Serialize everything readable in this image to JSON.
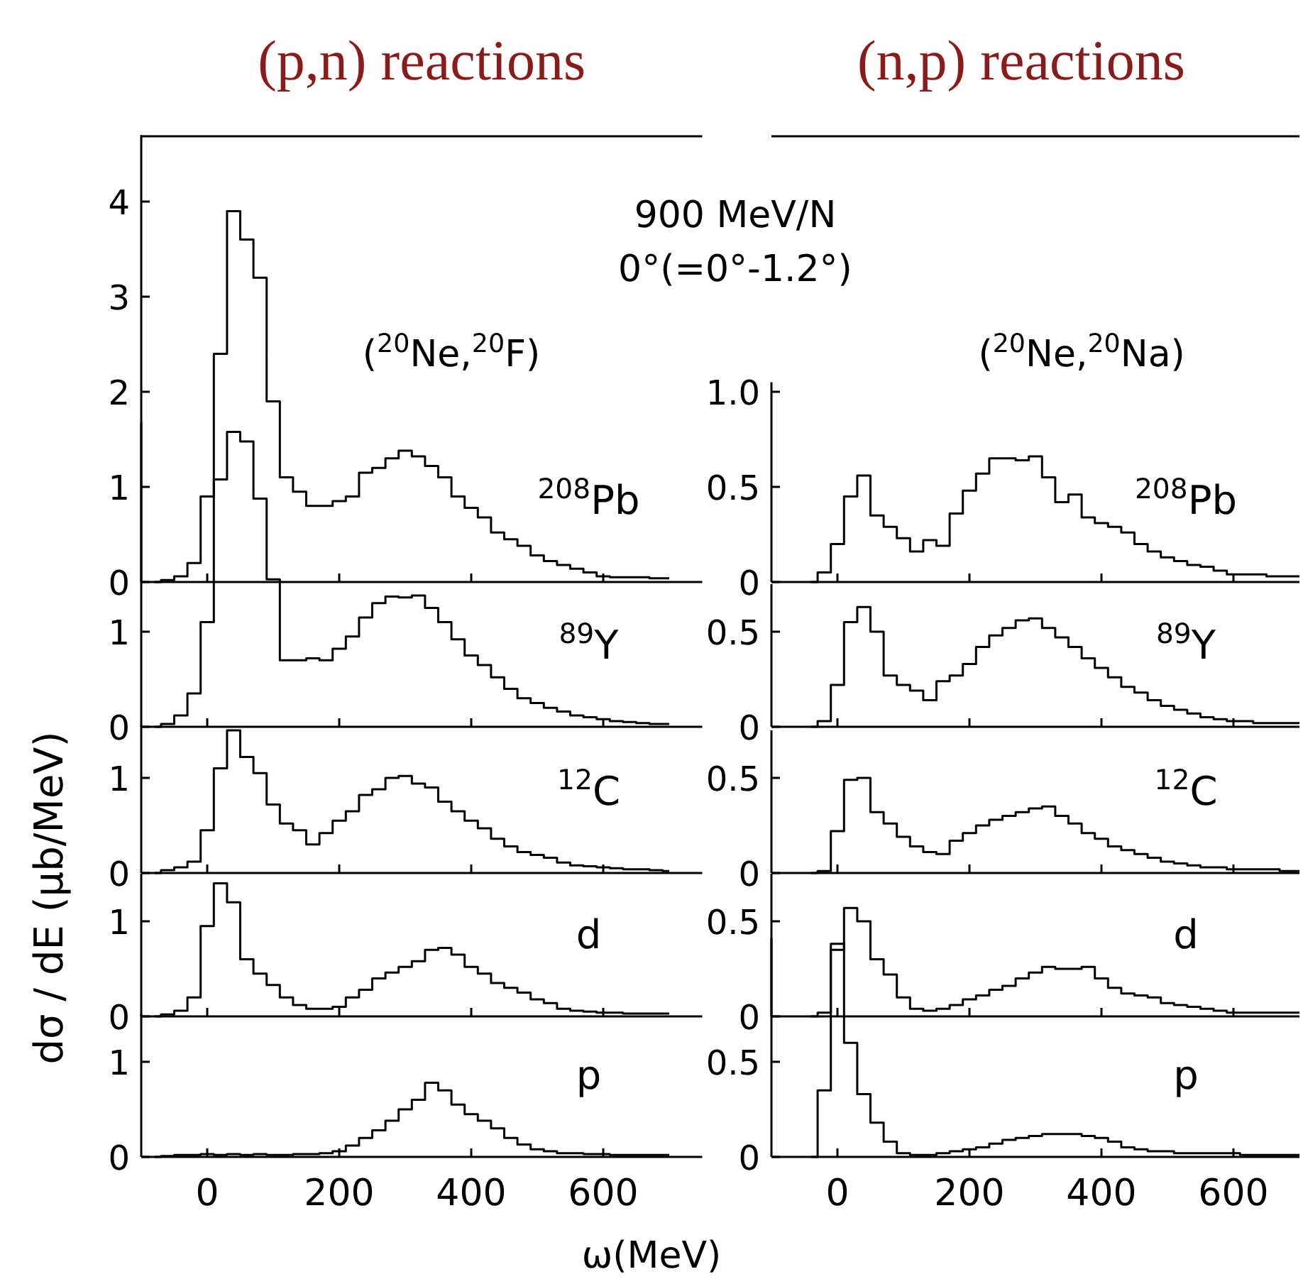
{
  "chart_data": [
    {
      "type": "step",
      "title": "(p,n) reactions",
      "annotations": [
        "900 MeV/N",
        "0°(=0°-1.2°)",
        "($^{20}$Ne,$^{20}$F)",
        "$^{208}$Pb"
      ],
      "x": [
        -80,
        -60,
        -40,
        -20,
        0,
        20,
        40,
        60,
        80,
        100,
        120,
        140,
        160,
        180,
        200,
        220,
        240,
        260,
        280,
        300,
        320,
        340,
        360,
        380,
        400,
        420,
        440,
        460,
        480,
        500,
        520,
        540,
        560,
        580,
        600,
        620,
        640,
        660,
        680,
        700
      ],
      "xlim": [
        -100,
        750
      ],
      "xticks": [
        0,
        200,
        400,
        600
      ],
      "ylim": [
        0,
        4.7
      ],
      "yticks": [
        0,
        1,
        2,
        3,
        4
      ],
      "tick_labels": "y",
      "series": [
        {
          "color": "#000000",
          "values": [
            0,
            0.02,
            0.06,
            0.2,
            0.9,
            2.4,
            3.9,
            3.6,
            3.2,
            1.9,
            1.1,
            0.95,
            0.8,
            0.8,
            0.85,
            0.9,
            1.15,
            1.2,
            1.3,
            1.38,
            1.32,
            1.22,
            1.1,
            0.9,
            0.78,
            0.68,
            0.52,
            0.45,
            0.38,
            0.28,
            0.22,
            0.18,
            0.14,
            0.1,
            0.06,
            0.05,
            0.05,
            0.05,
            0.04,
            0.04
          ]
        }
      ]
    },
    {
      "type": "step",
      "title": "(n,p) reactions",
      "annotations": [
        "($^{20}$Ne,$^{20}$Na)",
        "$^{208}$Pb"
      ],
      "x": [
        -40,
        -20,
        0,
        20,
        40,
        60,
        80,
        100,
        120,
        140,
        160,
        180,
        200,
        220,
        240,
        260,
        280,
        300,
        320,
        340,
        360,
        380,
        400,
        420,
        440,
        460,
        480,
        500,
        520,
        540,
        560,
        580,
        600,
        620,
        640,
        660,
        680,
        700
      ],
      "xlim": [
        -100,
        700
      ],
      "xticks": [
        0,
        200,
        400,
        600
      ],
      "ylim": [
        0,
        1.05
      ],
      "yticks": [
        0,
        0.5,
        {
          "value": 1,
          "label": "1.0"
        }
      ],
      "tick_labels": "y",
      "series": [
        {
          "color": "#000000",
          "values": [
            0,
            0.05,
            0.2,
            0.45,
            0.56,
            0.35,
            0.29,
            0.23,
            0.16,
            0.22,
            0.19,
            0.36,
            0.48,
            0.57,
            0.65,
            0.65,
            0.64,
            0.66,
            0.55,
            0.42,
            0.46,
            0.34,
            0.31,
            0.29,
            0.26,
            0.2,
            0.16,
            0.13,
            0.11,
            0.09,
            0.08,
            0.06,
            0.04,
            0.04,
            0.04,
            0.03,
            0.03,
            0.03
          ]
        }
      ]
    },
    {
      "type": "step",
      "annotations": [
        "$^{89}$Y"
      ],
      "x": [
        -80,
        -60,
        -40,
        -20,
        0,
        20,
        40,
        60,
        80,
        100,
        120,
        140,
        160,
        180,
        200,
        220,
        240,
        260,
        280,
        300,
        320,
        340,
        360,
        380,
        400,
        420,
        440,
        460,
        480,
        500,
        520,
        540,
        560,
        580,
        600,
        620,
        640,
        660,
        680,
        700
      ],
      "xlim": [
        -100,
        750
      ],
      "xticks": [
        0,
        200,
        400,
        600
      ],
      "ylim": [
        0,
        3.2
      ],
      "yticks": [
        0,
        1
      ],
      "tick_labels": "y",
      "series": [
        {
          "color": "#000000",
          "values": [
            0,
            0.03,
            0.12,
            0.35,
            1.1,
            2.6,
            3.1,
            3.0,
            2.4,
            1.55,
            0.7,
            0.7,
            0.72,
            0.7,
            0.82,
            0.95,
            1.15,
            1.3,
            1.37,
            1.36,
            1.38,
            1.25,
            1.1,
            0.92,
            0.75,
            0.65,
            0.52,
            0.4,
            0.3,
            0.25,
            0.2,
            0.16,
            0.12,
            0.1,
            0.08,
            0.06,
            0.05,
            0.04,
            0.03,
            0.03
          ]
        }
      ]
    },
    {
      "type": "step",
      "annotations": [
        "$^{89}$Y"
      ],
      "x": [
        -40,
        -20,
        0,
        20,
        40,
        60,
        80,
        100,
        120,
        140,
        160,
        180,
        200,
        220,
        240,
        260,
        280,
        300,
        320,
        340,
        360,
        380,
        400,
        420,
        440,
        460,
        480,
        500,
        520,
        540,
        560,
        580,
        600,
        620,
        640,
        660,
        680,
        700
      ],
      "xlim": [
        -100,
        700
      ],
      "xticks": [
        0,
        200,
        400,
        600
      ],
      "ylim": [
        0,
        0.75
      ],
      "yticks": [
        0,
        0.5
      ],
      "tick_labels": "y",
      "series": [
        {
          "color": "#000000",
          "values": [
            0,
            0.03,
            0.22,
            0.55,
            0.63,
            0.5,
            0.27,
            0.22,
            0.19,
            0.14,
            0.24,
            0.27,
            0.33,
            0.42,
            0.48,
            0.52,
            0.56,
            0.57,
            0.52,
            0.47,
            0.42,
            0.36,
            0.31,
            0.26,
            0.21,
            0.18,
            0.14,
            0.11,
            0.09,
            0.07,
            0.05,
            0.04,
            0.03,
            0.03,
            0.02,
            0.02,
            0.02,
            0.02
          ]
        }
      ]
    },
    {
      "type": "step",
      "ylabel": "dσ / dE (μb/MeV)",
      "annotations": [
        "$^{12}$C"
      ],
      "x": [
        -80,
        -60,
        -40,
        -20,
        0,
        20,
        40,
        60,
        80,
        100,
        120,
        140,
        160,
        180,
        200,
        220,
        240,
        260,
        280,
        300,
        320,
        340,
        360,
        380,
        400,
        420,
        440,
        460,
        480,
        500,
        520,
        540,
        560,
        580,
        600,
        620,
        640,
        660,
        680,
        700
      ],
      "xlim": [
        -100,
        750
      ],
      "xticks": [
        0,
        200,
        400,
        600
      ],
      "ylim": [
        0,
        1.55
      ],
      "yticks": [
        0,
        1
      ],
      "tick_labels": "y",
      "series": [
        {
          "color": "#000000",
          "values": [
            0,
            0.03,
            0.06,
            0.12,
            0.45,
            1.1,
            1.5,
            1.22,
            1.05,
            0.72,
            0.52,
            0.45,
            0.3,
            0.42,
            0.55,
            0.65,
            0.82,
            0.88,
            1.0,
            1.02,
            0.94,
            0.9,
            0.75,
            0.65,
            0.55,
            0.47,
            0.36,
            0.28,
            0.22,
            0.19,
            0.16,
            0.11,
            0.08,
            0.07,
            0.06,
            0.05,
            0.04,
            0.04,
            0.03,
            0.02
          ]
        }
      ]
    },
    {
      "type": "step",
      "annotations": [
        "$^{12}$C"
      ],
      "x": [
        -40,
        -20,
        0,
        20,
        40,
        60,
        80,
        100,
        120,
        140,
        160,
        180,
        200,
        220,
        240,
        260,
        280,
        300,
        320,
        340,
        360,
        380,
        400,
        420,
        440,
        460,
        480,
        500,
        520,
        540,
        560,
        580,
        600,
        620,
        640,
        660,
        680,
        700
      ],
      "xlim": [
        -100,
        700
      ],
      "xticks": [
        0,
        200,
        400,
        600
      ],
      "ylim": [
        0,
        0.75
      ],
      "yticks": [
        0,
        0.5
      ],
      "tick_labels": "y",
      "series": [
        {
          "color": "#000000",
          "values": [
            0,
            0.01,
            0.22,
            0.49,
            0.5,
            0.32,
            0.26,
            0.19,
            0.14,
            0.11,
            0.1,
            0.17,
            0.21,
            0.25,
            0.28,
            0.3,
            0.32,
            0.34,
            0.35,
            0.3,
            0.26,
            0.21,
            0.18,
            0.14,
            0.12,
            0.1,
            0.08,
            0.06,
            0.05,
            0.04,
            0.03,
            0.03,
            0.02,
            0.02,
            0.02,
            0.02,
            0.01,
            0.01
          ]
        }
      ]
    },
    {
      "type": "step",
      "annotations": [
        "d"
      ],
      "x": [
        -80,
        -60,
        -40,
        -20,
        0,
        20,
        40,
        60,
        80,
        100,
        120,
        140,
        160,
        180,
        200,
        220,
        240,
        260,
        280,
        300,
        320,
        340,
        360,
        380,
        400,
        420,
        440,
        460,
        480,
        500,
        520,
        540,
        560,
        580,
        600,
        620,
        640,
        660,
        680,
        700
      ],
      "xlim": [
        -100,
        750
      ],
      "xticks": [
        0,
        200,
        400,
        600
      ],
      "ylim": [
        0,
        1.5
      ],
      "yticks": [
        0,
        1
      ],
      "tick_labels": "y",
      "series": [
        {
          "color": "#000000",
          "values": [
            0,
            0.02,
            0.06,
            0.2,
            0.95,
            1.4,
            1.2,
            0.6,
            0.45,
            0.33,
            0.2,
            0.12,
            0.08,
            0.08,
            0.1,
            0.2,
            0.28,
            0.4,
            0.46,
            0.52,
            0.58,
            0.7,
            0.72,
            0.65,
            0.52,
            0.45,
            0.35,
            0.3,
            0.25,
            0.18,
            0.14,
            0.08,
            0.06,
            0.05,
            0.04,
            0.04,
            0.03,
            0.03,
            0.03,
            0.03
          ]
        }
      ]
    },
    {
      "type": "step",
      "annotations": [
        "d"
      ],
      "x": [
        -40,
        -20,
        0,
        20,
        40,
        60,
        80,
        100,
        120,
        140,
        160,
        180,
        200,
        220,
        240,
        260,
        280,
        300,
        320,
        340,
        360,
        380,
        400,
        420,
        440,
        460,
        480,
        500,
        520,
        540,
        560,
        580,
        600,
        620,
        640,
        660,
        680,
        700
      ],
      "xlim": [
        -100,
        700
      ],
      "xticks": [
        0,
        200,
        400,
        600
      ],
      "ylim": [
        0,
        0.75
      ],
      "yticks": [
        0,
        0.5
      ],
      "tick_labels": "y",
      "series": [
        {
          "color": "#000000",
          "values": [
            0,
            0.02,
            0.35,
            0.57,
            0.5,
            0.3,
            0.22,
            0.1,
            0.04,
            0.03,
            0.04,
            0.06,
            0.09,
            0.11,
            0.14,
            0.16,
            0.2,
            0.23,
            0.26,
            0.25,
            0.25,
            0.26,
            0.2,
            0.15,
            0.12,
            0.11,
            0.1,
            0.07,
            0.06,
            0.05,
            0.04,
            0.03,
            0.02,
            0.02,
            0.02,
            0.02,
            0.02,
            0.02
          ]
        }
      ]
    },
    {
      "type": "step",
      "xlabel": "ω(MeV)",
      "annotations": [
        "p"
      ],
      "x": [
        -80,
        -60,
        -40,
        -20,
        0,
        20,
        40,
        60,
        80,
        100,
        120,
        140,
        160,
        180,
        200,
        220,
        240,
        260,
        280,
        300,
        320,
        340,
        360,
        380,
        400,
        420,
        440,
        460,
        480,
        500,
        520,
        540,
        560,
        580,
        600,
        620,
        640,
        660,
        680,
        700
      ],
      "xlim": [
        -100,
        750
      ],
      "xticks": [
        0,
        200,
        400,
        600
      ],
      "ylim": [
        0,
        1.5
      ],
      "yticks": [
        0,
        1
      ],
      "series": [
        {
          "color": "#000000",
          "values": [
            0,
            0.01,
            0.02,
            0.02,
            0.03,
            0.02,
            0.03,
            0.02,
            0.03,
            0.02,
            0.02,
            0.03,
            0.03,
            0.04,
            0.06,
            0.12,
            0.2,
            0.28,
            0.38,
            0.5,
            0.6,
            0.78,
            0.7,
            0.55,
            0.45,
            0.38,
            0.3,
            0.2,
            0.13,
            0.08,
            0.06,
            0.04,
            0.04,
            0.03,
            0.03,
            0.02,
            0.02,
            0.02,
            0.02,
            0.02
          ]
        }
      ]
    },
    {
      "type": "step",
      "annotations": [
        "p"
      ],
      "x": [
        -40,
        -20,
        0,
        20,
        40,
        60,
        80,
        100,
        120,
        140,
        160,
        180,
        200,
        220,
        240,
        260,
        280,
        300,
        320,
        340,
        360,
        380,
        400,
        420,
        440,
        460,
        480,
        500,
        520,
        540,
        560,
        580,
        600,
        620,
        640,
        660,
        680,
        700
      ],
      "xlim": [
        -100,
        700
      ],
      "xticks": [
        0,
        200,
        400,
        600
      ],
      "ylim": [
        0,
        1.15
      ],
      "yticks": [
        0,
        0.5
      ],
      "series": [
        {
          "color": "#000000",
          "values": [
            0,
            0.35,
            1.12,
            0.6,
            0.33,
            0.18,
            0.08,
            0.02,
            0.01,
            0.01,
            0.02,
            0.03,
            0.04,
            0.05,
            0.07,
            0.09,
            0.1,
            0.11,
            0.12,
            0.12,
            0.12,
            0.11,
            0.1,
            0.08,
            0.05,
            0.04,
            0.03,
            0.03,
            0.02,
            0.02,
            0.02,
            0.02,
            0.02,
            0.01,
            0.01,
            0.01,
            0.01,
            0.01
          ]
        }
      ]
    }
  ]
}
